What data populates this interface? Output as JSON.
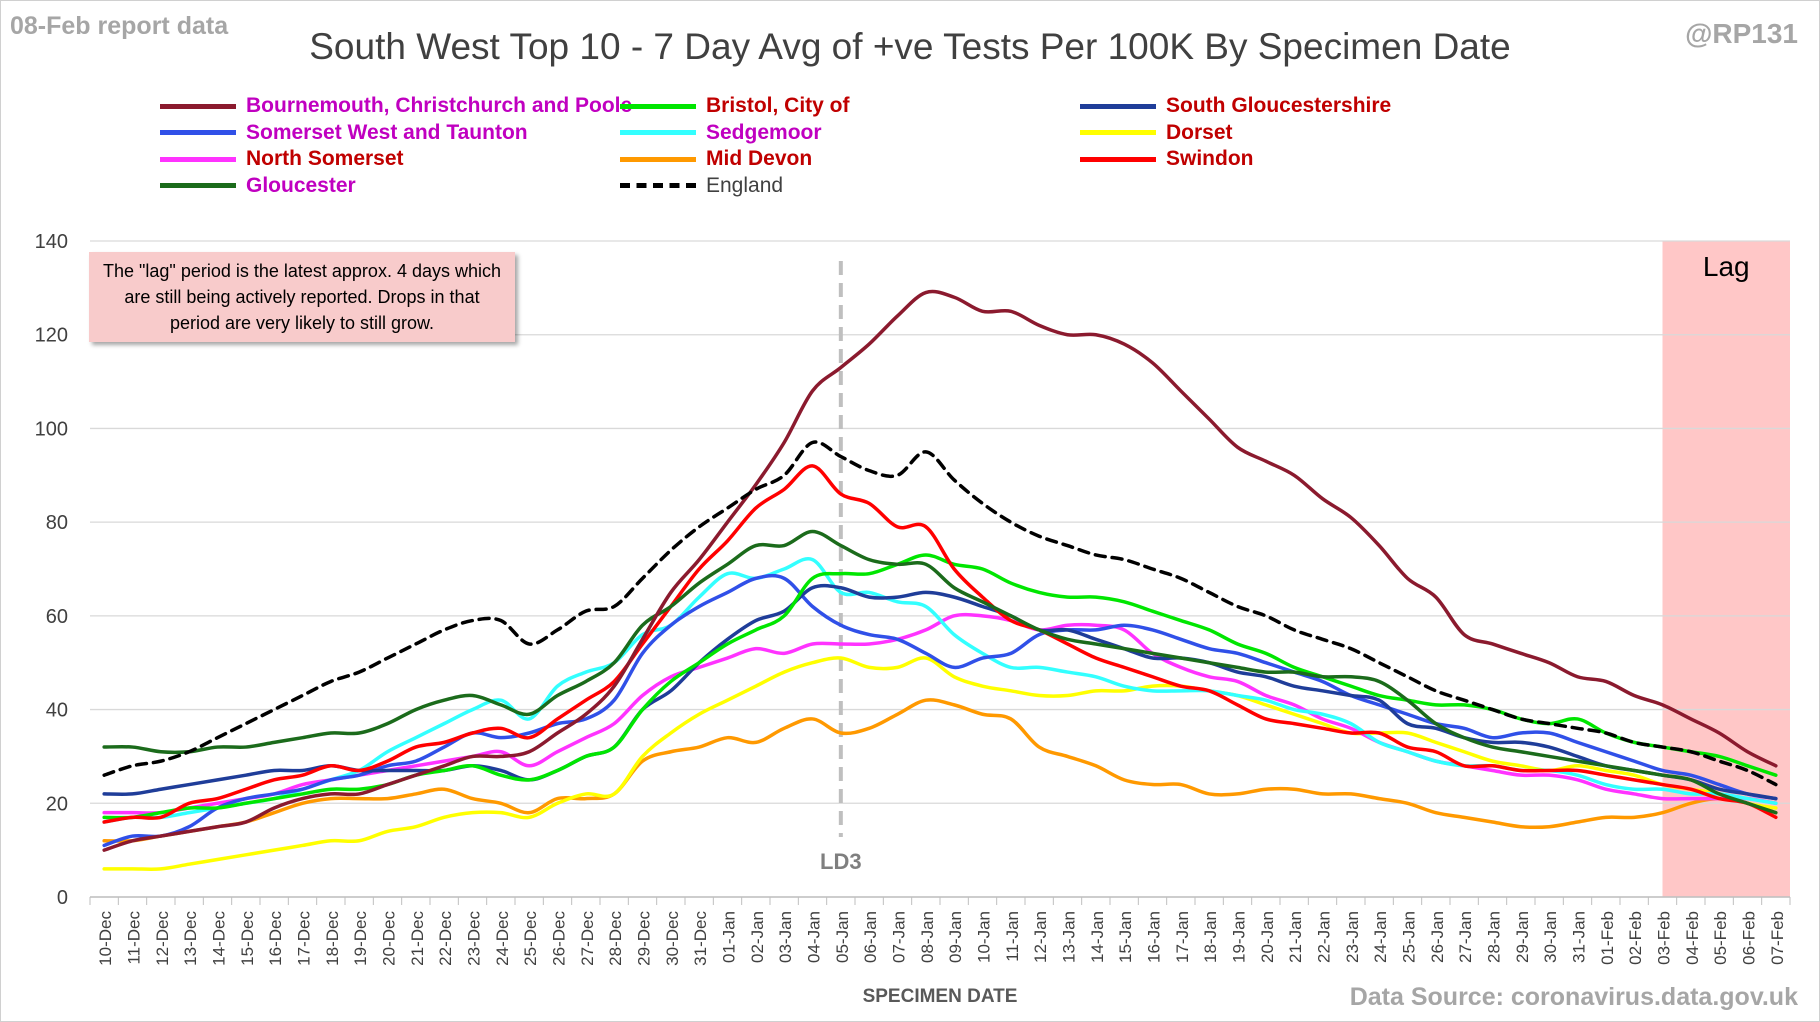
{
  "header": {
    "report_note": "08-Feb report data",
    "handle": "@RP131",
    "source": "Data Source: coronavirus.data.gov.uk"
  },
  "annotations": {
    "lag_note": "The \"lag\" period is the latest approx. 4 days which are still being actively reported.  Drops in that period are very likely to still grow.",
    "lag_label": "Lag",
    "ld3_label": "LD3"
  },
  "colors": {
    "background": "#ffffff",
    "lag_shade": "#ffc7c7",
    "grid": "#d9d9d9",
    "text": "#404040"
  },
  "chart_data": {
    "type": "line",
    "title": "South West Top 10 - 7 Day Avg of +ve Tests Per 100K By Specimen Date",
    "xlabel": "SPECIMEN DATE",
    "ylabel": "",
    "ylim": [
      0,
      140
    ],
    "yticks": [
      0,
      20,
      40,
      60,
      80,
      100,
      120,
      140
    ],
    "grid": true,
    "legend_position": "top",
    "lag_start": "03-Feb",
    "lag_end": "07-Feb",
    "ld3_date": "05-Jan",
    "x": [
      "10-Dec",
      "11-Dec",
      "12-Dec",
      "13-Dec",
      "14-Dec",
      "15-Dec",
      "16-Dec",
      "17-Dec",
      "18-Dec",
      "19-Dec",
      "20-Dec",
      "21-Dec",
      "22-Dec",
      "23-Dec",
      "24-Dec",
      "25-Dec",
      "26-Dec",
      "27-Dec",
      "28-Dec",
      "29-Dec",
      "30-Dec",
      "31-Dec",
      "01-Jan",
      "02-Jan",
      "03-Jan",
      "04-Jan",
      "05-Jan",
      "06-Jan",
      "07-Jan",
      "08-Jan",
      "09-Jan",
      "10-Jan",
      "11-Jan",
      "12-Jan",
      "13-Jan",
      "14-Jan",
      "15-Jan",
      "16-Jan",
      "17-Jan",
      "18-Jan",
      "19-Jan",
      "20-Jan",
      "21-Jan",
      "22-Jan",
      "23-Jan",
      "24-Jan",
      "25-Jan",
      "26-Jan",
      "27-Jan",
      "28-Jan",
      "29-Jan",
      "30-Jan",
      "31-Jan",
      "01-Feb",
      "02-Feb",
      "03-Feb",
      "04-Feb",
      "05-Feb",
      "06-Feb",
      "07-Feb"
    ],
    "series": [
      {
        "name": "Bournemouth, Christchurch and Poole",
        "color": "#8b1a2e",
        "label_color": "#c000c0",
        "dashed": false,
        "values": [
          10,
          12,
          13,
          14,
          15,
          16,
          19,
          21,
          22,
          22,
          24,
          26,
          28,
          30,
          30,
          31,
          35,
          39,
          45,
          55,
          65,
          72,
          80,
          88,
          97,
          108,
          113,
          118,
          124,
          129,
          128,
          125,
          125,
          122,
          120,
          120,
          118,
          114,
          108,
          102,
          96,
          93,
          90,
          85,
          81,
          75,
          68,
          64,
          56,
          54,
          52,
          50,
          47,
          46,
          43,
          41,
          38,
          35,
          31,
          28
        ]
      },
      {
        "name": "Bristol, City of",
        "color": "#00e600",
        "label_color": "#c00000",
        "dashed": false,
        "values": [
          17,
          17,
          18,
          19,
          19,
          20,
          21,
          22,
          23,
          23,
          24,
          26,
          27,
          28,
          26,
          25,
          27,
          30,
          32,
          40,
          46,
          50,
          54,
          57,
          60,
          68,
          69,
          69,
          71,
          73,
          71,
          70,
          67,
          65,
          64,
          64,
          63,
          61,
          59,
          57,
          54,
          52,
          49,
          47,
          45,
          43,
          42,
          41,
          41,
          40,
          38,
          37,
          38,
          35,
          33,
          32,
          31,
          30,
          28,
          26
        ]
      },
      {
        "name": "South Gloucestershire",
        "color": "#1f3d99",
        "label_color": "#c00000",
        "dashed": false,
        "values": [
          22,
          22,
          23,
          24,
          25,
          26,
          27,
          27,
          28,
          27,
          27,
          27,
          27,
          28,
          27,
          25,
          27,
          30,
          32,
          40,
          44,
          50,
          55,
          59,
          61,
          66,
          66,
          64,
          64,
          65,
          64,
          62,
          60,
          57,
          57,
          55,
          53,
          51,
          51,
          50,
          48,
          47,
          45,
          44,
          43,
          42,
          37,
          36,
          34,
          33,
          33,
          32,
          30,
          28,
          27,
          26,
          25,
          23,
          22,
          21
        ]
      },
      {
        "name": "Somerset West and Taunton",
        "color": "#3050e8",
        "label_color": "#c000c0",
        "dashed": false,
        "values": [
          11,
          13,
          13,
          15,
          19,
          21,
          22,
          23,
          25,
          26,
          28,
          29,
          32,
          35,
          34,
          35,
          37,
          38,
          42,
          52,
          58,
          62,
          65,
          68,
          68,
          62,
          58,
          56,
          55,
          52,
          49,
          51,
          52,
          56,
          57,
          57,
          58,
          57,
          55,
          53,
          52,
          50,
          48,
          46,
          43,
          41,
          39,
          37,
          36,
          34,
          35,
          35,
          33,
          31,
          29,
          27,
          26,
          24,
          22,
          21
        ]
      },
      {
        "name": "Sedgemoor",
        "color": "#33ffff",
        "label_color": "#c000c0",
        "dashed": false,
        "values": [
          16,
          17,
          17,
          18,
          19,
          20,
          21,
          23,
          25,
          27,
          31,
          34,
          37,
          40,
          42,
          38,
          45,
          48,
          50,
          56,
          58,
          64,
          69,
          68,
          70,
          72,
          65,
          65,
          63,
          62,
          56,
          52,
          49,
          49,
          48,
          47,
          45,
          44,
          44,
          44,
          43,
          42,
          40,
          39,
          37,
          33,
          31,
          29,
          28,
          28,
          27,
          27,
          26,
          24,
          23,
          23,
          22,
          22,
          21,
          20
        ]
      },
      {
        "name": "Dorset",
        "color": "#ffff00",
        "label_color": "#c00000",
        "dashed": false,
        "values": [
          6,
          6,
          6,
          7,
          8,
          9,
          10,
          11,
          12,
          12,
          14,
          15,
          17,
          18,
          18,
          17,
          20,
          22,
          22,
          30,
          35,
          39,
          42,
          45,
          48,
          50,
          51,
          49,
          49,
          51,
          47,
          45,
          44,
          43,
          43,
          44,
          44,
          45,
          45,
          44,
          43,
          41,
          39,
          37,
          35,
          35,
          35,
          33,
          31,
          29,
          28,
          27,
          28,
          27,
          26,
          24,
          23,
          22,
          20,
          19
        ]
      },
      {
        "name": "North Somerset",
        "color": "#ff33ff",
        "label_color": "#c00000",
        "dashed": false,
        "values": [
          18,
          18,
          18,
          19,
          20,
          21,
          22,
          24,
          25,
          26,
          27,
          28,
          29,
          30,
          31,
          28,
          31,
          34,
          37,
          43,
          47,
          49,
          51,
          53,
          52,
          54,
          54,
          54,
          55,
          57,
          60,
          60,
          59,
          57,
          58,
          58,
          57,
          52,
          49,
          47,
          46,
          43,
          41,
          38,
          36,
          33,
          31,
          29,
          28,
          27,
          26,
          26,
          25,
          23,
          22,
          21,
          21,
          21,
          21,
          20
        ]
      },
      {
        "name": "Mid Devon",
        "color": "#ff9900",
        "label_color": "#c00000",
        "dashed": false,
        "values": [
          12,
          12,
          13,
          14,
          15,
          16,
          18,
          20,
          21,
          21,
          21,
          22,
          23,
          21,
          20,
          18,
          21,
          21,
          22,
          29,
          31,
          32,
          34,
          33,
          36,
          38,
          35,
          36,
          39,
          42,
          41,
          39,
          38,
          32,
          30,
          28,
          25,
          24,
          24,
          22,
          22,
          23,
          23,
          22,
          22,
          21,
          20,
          18,
          17,
          16,
          15,
          15,
          16,
          17,
          17,
          18,
          20,
          21,
          20,
          18
        ]
      },
      {
        "name": "Swindon",
        "color": "#ff0000",
        "label_color": "#c00000",
        "dashed": false,
        "values": [
          16,
          17,
          17,
          20,
          21,
          23,
          25,
          26,
          28,
          27,
          29,
          32,
          33,
          35,
          36,
          34,
          38,
          42,
          46,
          54,
          62,
          70,
          76,
          83,
          87,
          92,
          86,
          84,
          79,
          79,
          70,
          64,
          59,
          57,
          54,
          51,
          49,
          47,
          45,
          44,
          41,
          38,
          37,
          36,
          35,
          35,
          32,
          31,
          28,
          28,
          27,
          27,
          27,
          26,
          25,
          24,
          23,
          21,
          20,
          17
        ]
      },
      {
        "name": "Gloucester",
        "color": "#1b6b1b",
        "label_color": "#c000c0",
        "dashed": false,
        "values": [
          32,
          32,
          31,
          31,
          32,
          32,
          33,
          34,
          35,
          35,
          37,
          40,
          42,
          43,
          41,
          39,
          43,
          46,
          50,
          58,
          62,
          67,
          71,
          75,
          75,
          78,
          75,
          72,
          71,
          71,
          66,
          63,
          60,
          57,
          55,
          54,
          53,
          52,
          51,
          50,
          49,
          48,
          48,
          47,
          47,
          46,
          42,
          37,
          34,
          32,
          31,
          30,
          29,
          28,
          27,
          26,
          25,
          22,
          20,
          18
        ]
      },
      {
        "name": "England",
        "color": "#000000",
        "label_color": "#404040",
        "dashed": true,
        "values": [
          26,
          28,
          29,
          31,
          34,
          37,
          40,
          43,
          46,
          48,
          51,
          54,
          57,
          59,
          59,
          54,
          57,
          61,
          62,
          68,
          74,
          79,
          83,
          87,
          90,
          97,
          94,
          91,
          90,
          95,
          89,
          84,
          80,
          77,
          75,
          73,
          72,
          70,
          68,
          65,
          62,
          60,
          57,
          55,
          53,
          50,
          47,
          44,
          42,
          40,
          38,
          37,
          36,
          35,
          33,
          32,
          31,
          29,
          27,
          24
        ]
      }
    ]
  }
}
